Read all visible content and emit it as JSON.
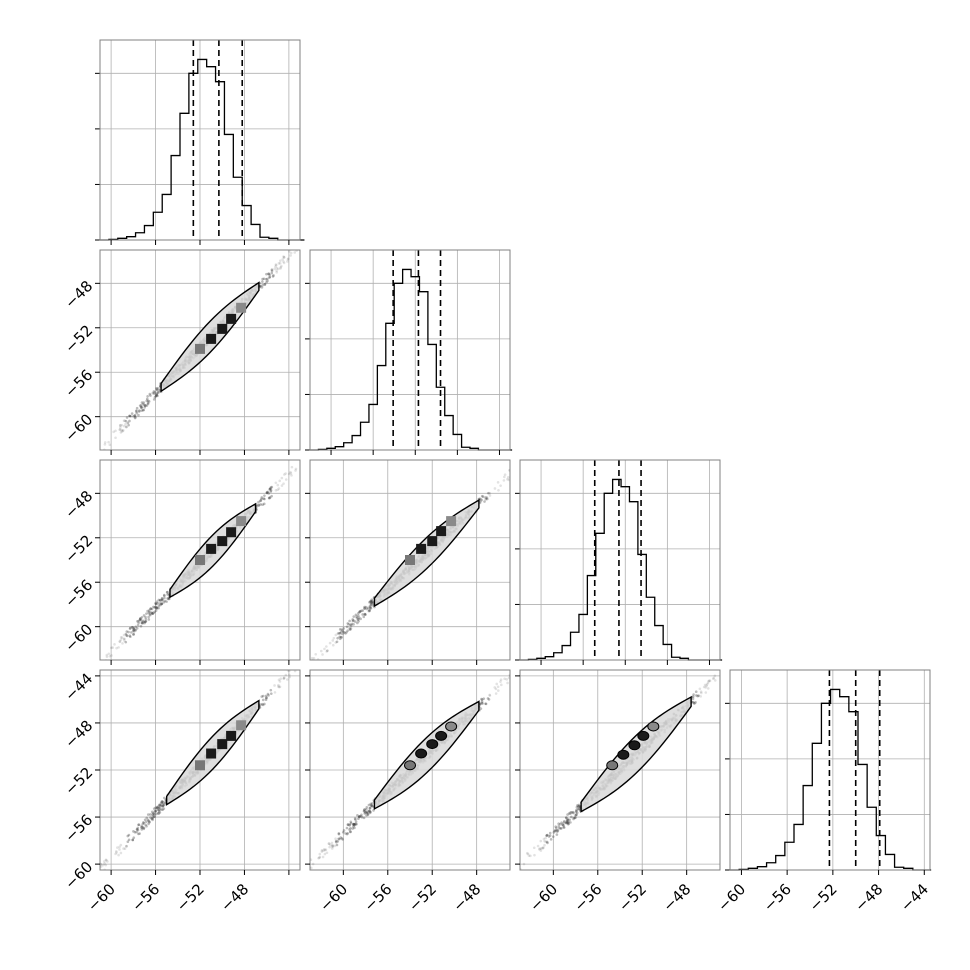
{
  "chart_data": {
    "type": "corner",
    "title": "",
    "parameters": 4,
    "grid": true,
    "diagonal_histograms": [
      {
        "param": 0,
        "xlim": [
          -61,
          -43
        ],
        "bin_start": -61,
        "bin_width": 0.8,
        "counts": [
          0,
          1,
          3,
          6,
          13,
          26,
          50,
          82,
          152,
          228,
          300,
          325,
          312,
          285,
          190,
          113,
          62,
          28,
          5,
          3,
          0,
          0,
          0
        ],
        "count_max": 360,
        "quantiles": [
          -52.6,
          -50.3,
          -48.2
        ]
      },
      {
        "param": 1,
        "xlim": [
          -62,
          -43
        ],
        "bin_start": -62,
        "bin_width": 0.8,
        "counts": [
          0,
          1,
          3,
          6,
          13,
          26,
          50,
          82,
          152,
          228,
          300,
          325,
          312,
          285,
          190,
          113,
          62,
          28,
          5,
          3,
          0,
          0,
          0,
          0
        ],
        "count_max": 360,
        "quantiles": [
          -54.1,
          -51.7,
          -49.6
        ]
      },
      {
        "param": 2,
        "xlim": [
          -62,
          -43
        ],
        "bin_start": -62,
        "bin_width": 0.8,
        "counts": [
          0,
          1,
          3,
          6,
          13,
          26,
          50,
          82,
          152,
          228,
          300,
          325,
          312,
          285,
          190,
          113,
          62,
          28,
          5,
          3,
          0,
          0,
          0,
          0
        ],
        "count_max": 360,
        "quantiles": [
          -54.9,
          -52.6,
          -50.5
        ]
      },
      {
        "param": 3,
        "xlim": [
          -61,
          -43.5
        ],
        "bin_start": -61,
        "bin_width": 0.8,
        "counts": [
          0,
          1,
          3,
          6,
          13,
          26,
          50,
          82,
          152,
          228,
          300,
          325,
          312,
          285,
          190,
          113,
          62,
          28,
          5,
          3,
          0,
          0
        ],
        "count_max": 360,
        "quantiles": [
          -52.3,
          -50.0,
          -47.9
        ]
      }
    ],
    "scatter_panels": [
      {
        "x_param": 0,
        "y_param": 1,
        "x_range": [
          -61,
          -43
        ],
        "y_range": [
          -63,
          -45
        ],
        "line": [
          [
            -60,
            -62
          ],
          [
            -44,
            -45.5
          ]
        ],
        "contour_x": [
          -55.5,
          -46.7
        ],
        "contour_width": 1.4,
        "blobs": [
          [
            -52,
            -53.9
          ],
          [
            -51,
            -53
          ],
          [
            -50,
            -52.1
          ],
          [
            -49.2,
            -51.2
          ],
          [
            -48.3,
            -50.2
          ]
        ]
      },
      {
        "x_param": 0,
        "y_param": 2,
        "x_range": [
          -61,
          -43
        ],
        "y_range": [
          -63,
          -45
        ],
        "line": [
          [
            -60,
            -62.3
          ],
          [
            -44,
            -46.3
          ]
        ],
        "contour_x": [
          -54.7,
          -47
        ],
        "contour_width": 1.4,
        "blobs": [
          [
            -52,
            -54
          ],
          [
            -51,
            -53
          ],
          [
            -50,
            -52.3
          ],
          [
            -49.2,
            -51.5
          ],
          [
            -48.3,
            -50.5
          ]
        ]
      },
      {
        "x_param": 1,
        "y_param": 2,
        "x_range": [
          -63,
          -45
        ],
        "y_range": [
          -63,
          -45
        ],
        "line": [
          [
            -62,
            -62.3
          ],
          [
            -45.5,
            -46.8
          ]
        ],
        "contour_x": [
          -57.2,
          -47.8
        ],
        "contour_width": 1.4,
        "blobs": [
          [
            -54,
            -54
          ],
          [
            -53,
            -53
          ],
          [
            -52,
            -52.3
          ],
          [
            -51.2,
            -51.4
          ],
          [
            -50.3,
            -50.5
          ]
        ]
      },
      {
        "x_param": 0,
        "y_param": 3,
        "x_range": [
          -61,
          -43
        ],
        "y_range": [
          -60.5,
          -43.5
        ],
        "line": [
          [
            -60,
            -59.5
          ],
          [
            -44,
            -43.8
          ]
        ],
        "contour_x": [
          -55,
          -46.7
        ],
        "contour_width": 1.4,
        "blobs": [
          [
            -52,
            -51.6
          ],
          [
            -51,
            -50.6
          ],
          [
            -50,
            -49.8
          ],
          [
            -49.2,
            -49.1
          ],
          [
            -48.3,
            -48.2
          ]
        ]
      },
      {
        "x_param": 1,
        "y_param": 3,
        "x_range": [
          -63,
          -45
        ],
        "y_range": [
          -60.5,
          -43.5
        ],
        "line": [
          [
            -62,
            -59.2
          ],
          [
            -45.5,
            -44.5
          ]
        ],
        "contour_x": [
          -57.2,
          -47.8
        ],
        "contour_width": 1.5,
        "blobs": [
          [
            -54,
            -51.6
          ],
          [
            -53,
            -50.6
          ],
          [
            -52,
            -49.8
          ],
          [
            -51.2,
            -49.1
          ],
          [
            -50.3,
            -48.3
          ]
        ]
      },
      {
        "x_param": 2,
        "y_param": 3,
        "x_range": [
          -63,
          -45
        ],
        "y_range": [
          -60.5,
          -43.5
        ],
        "line": [
          [
            -62,
            -59.2
          ],
          [
            -45.5,
            -44.3
          ]
        ],
        "contour_x": [
          -57.5,
          -47.6
        ],
        "contour_width": 1.6,
        "blobs": [
          [
            -54.7,
            -51.6
          ],
          [
            -53.7,
            -50.7
          ],
          [
            -52.7,
            -49.9
          ],
          [
            -51.9,
            -49.1
          ],
          [
            -51,
            -48.3
          ]
        ]
      }
    ],
    "x_tick_labels": [
      [
        "−60",
        "−56",
        "−52",
        "−48"
      ],
      [
        "−60",
        "−56",
        "−52",
        "−48"
      ],
      [
        "−60",
        "−56",
        "−52",
        "−48"
      ],
      [
        "−60",
        "−56",
        "−52",
        "−48",
        "−44"
      ]
    ],
    "y_tick_labels": [
      [],
      [
        "−48",
        "−52",
        "−56",
        "−60"
      ],
      [
        "−48",
        "−52",
        "−56",
        "−60"
      ],
      [
        "−44",
        "−48",
        "−52",
        "−56",
        "−60"
      ]
    ],
    "x_ticks": [
      [
        -60,
        -56,
        -52,
        -48,
        -44
      ],
      [
        -60,
        -56,
        -52,
        -48,
        -44
      ],
      [
        -60,
        -56,
        -52,
        -48,
        -44
      ],
      [
        -60,
        -56,
        -52,
        -48,
        -44
      ]
    ],
    "y_ticks": [
      [],
      [
        -48,
        -52,
        -56,
        -60
      ],
      [
        -48,
        -52,
        -56,
        -60
      ],
      [
        -44,
        -48,
        -52,
        -56,
        -60
      ]
    ],
    "colors": {
      "line": "#000000",
      "grid": "#b0b0b0",
      "frame": "#808080",
      "point": "#404040"
    }
  }
}
